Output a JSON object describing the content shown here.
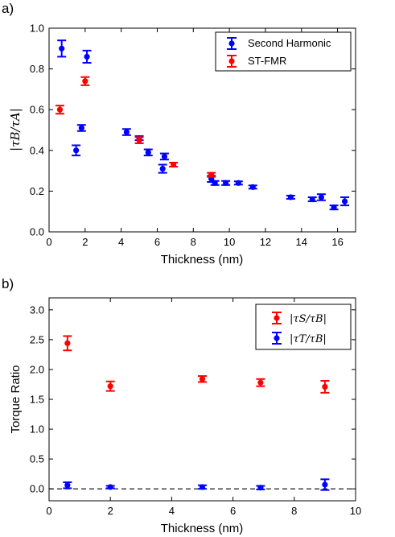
{
  "panels": [
    {
      "panel_label": "a)",
      "xlabel": "Thickness (nm)",
      "ylabel": "|τB/τA|",
      "legend_position": "top-right",
      "ref_line": null
    },
    {
      "panel_label": "b)",
      "xlabel": "Thickness (nm)",
      "ylabel": "Torque Ratio",
      "legend_position": "top-right",
      "ref_line": {
        "y": 0.0,
        "style": "dashed",
        "color": "#000000"
      }
    }
  ],
  "chart_data": [
    {
      "type": "scatter",
      "title": "",
      "xlabel": "Thickness (nm)",
      "ylabel": "|τB/τA|",
      "xlim": [
        0,
        17
      ],
      "ylim": [
        0.0,
        1.0
      ],
      "xticks": [
        "0",
        "2",
        "4",
        "6",
        "8",
        "10",
        "12",
        "14",
        "16"
      ],
      "yticks": [
        "0.0",
        "0.2",
        "0.4",
        "0.6",
        "0.8",
        "1.0"
      ],
      "legend": "top-right",
      "grid": false,
      "series": [
        {
          "name": "Second Harmonic",
          "color": "#0000ff",
          "points": [
            {
              "x": 0.7,
              "y": 0.9,
              "err": 0.04
            },
            {
              "x": 1.5,
              "y": 0.4,
              "err": 0.025
            },
            {
              "x": 1.8,
              "y": 0.51,
              "err": 0.015
            },
            {
              "x": 2.1,
              "y": 0.86,
              "err": 0.03
            },
            {
              "x": 4.3,
              "y": 0.49,
              "err": 0.015
            },
            {
              "x": 5.0,
              "y": 0.46,
              "err": 0.01
            },
            {
              "x": 5.5,
              "y": 0.39,
              "err": 0.015
            },
            {
              "x": 6.3,
              "y": 0.31,
              "err": 0.02
            },
            {
              "x": 6.4,
              "y": 0.37,
              "err": 0.015
            },
            {
              "x": 9.0,
              "y": 0.26,
              "err": 0.015
            },
            {
              "x": 9.2,
              "y": 0.24,
              "err": 0.01
            },
            {
              "x": 9.8,
              "y": 0.24,
              "err": 0.01
            },
            {
              "x": 10.5,
              "y": 0.24,
              "err": 0.008
            },
            {
              "x": 11.3,
              "y": 0.22,
              "err": 0.008
            },
            {
              "x": 13.4,
              "y": 0.17,
              "err": 0.008
            },
            {
              "x": 14.6,
              "y": 0.16,
              "err": 0.01
            },
            {
              "x": 15.1,
              "y": 0.17,
              "err": 0.015
            },
            {
              "x": 15.8,
              "y": 0.12,
              "err": 0.01
            },
            {
              "x": 16.4,
              "y": 0.15,
              "err": 0.02
            }
          ]
        },
        {
          "name": "ST-FMR",
          "color": "#ff0000",
          "points": [
            {
              "x": 0.6,
              "y": 0.6,
              "err": 0.02
            },
            {
              "x": 2.0,
              "y": 0.74,
              "err": 0.02
            },
            {
              "x": 5.0,
              "y": 0.45,
              "err": 0.015
            },
            {
              "x": 6.9,
              "y": 0.33,
              "err": 0.01
            },
            {
              "x": 9.0,
              "y": 0.28,
              "err": 0.01
            }
          ]
        }
      ]
    },
    {
      "type": "scatter",
      "title": "",
      "xlabel": "Thickness (nm)",
      "ylabel": "Torque Ratio",
      "xlim": [
        0,
        10
      ],
      "ylim": [
        -0.2,
        3.2
      ],
      "xticks": [
        "0",
        "2",
        "4",
        "6",
        "8",
        "10"
      ],
      "yticks": [
        "0.0",
        "0.5",
        "1.0",
        "1.5",
        "2.0",
        "2.5",
        "3.0"
      ],
      "legend": "top-right",
      "grid": false,
      "series": [
        {
          "name": "|τS/τB|",
          "color": "#ff0000",
          "points": [
            {
              "x": 0.6,
              "y": 2.44,
              "err": 0.12
            },
            {
              "x": 2.0,
              "y": 1.72,
              "err": 0.08
            },
            {
              "x": 5.0,
              "y": 1.84,
              "err": 0.05
            },
            {
              "x": 6.9,
              "y": 1.78,
              "err": 0.06
            },
            {
              "x": 9.0,
              "y": 1.71,
              "err": 0.1
            }
          ]
        },
        {
          "name": "|τT/τB|",
          "color": "#0000ff",
          "points": [
            {
              "x": 0.6,
              "y": 0.06,
              "err": 0.05
            },
            {
              "x": 2.0,
              "y": 0.03,
              "err": 0.02
            },
            {
              "x": 5.0,
              "y": 0.03,
              "err": 0.03
            },
            {
              "x": 6.9,
              "y": 0.02,
              "err": 0.03
            },
            {
              "x": 9.0,
              "y": 0.07,
              "err": 0.09
            }
          ]
        }
      ]
    }
  ]
}
